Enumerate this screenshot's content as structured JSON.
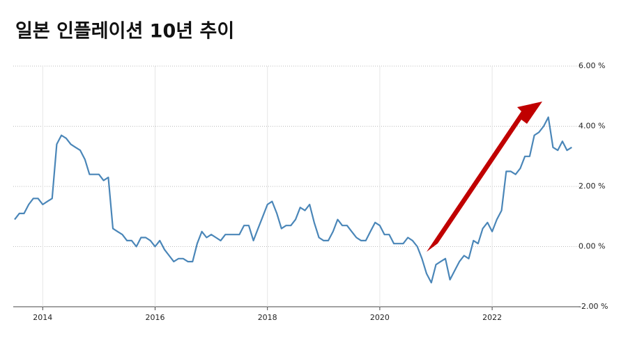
{
  "chart_data": {
    "type": "line",
    "title": "일본 인플레이션 10년 추이",
    "x": [
      2013.5,
      2013.583,
      2013.667,
      2013.75,
      2013.833,
      2013.917,
      2014,
      2014.083,
      2014.167,
      2014.25,
      2014.333,
      2014.417,
      2014.5,
      2014.583,
      2014.667,
      2014.75,
      2014.833,
      2014.917,
      2015,
      2015.083,
      2015.167,
      2015.25,
      2015.333,
      2015.417,
      2015.5,
      2015.583,
      2015.667,
      2015.75,
      2015.833,
      2015.917,
      2016,
      2016.083,
      2016.167,
      2016.25,
      2016.333,
      2016.417,
      2016.5,
      2016.583,
      2016.667,
      2016.75,
      2016.833,
      2016.917,
      2017,
      2017.083,
      2017.167,
      2017.25,
      2017.333,
      2017.417,
      2017.5,
      2017.583,
      2017.667,
      2017.75,
      2017.833,
      2017.917,
      2018,
      2018.083,
      2018.167,
      2018.25,
      2018.333,
      2018.417,
      2018.5,
      2018.583,
      2018.667,
      2018.75,
      2018.833,
      2018.917,
      2019,
      2019.083,
      2019.167,
      2019.25,
      2019.333,
      2019.417,
      2019.5,
      2019.583,
      2019.667,
      2019.75,
      2019.833,
      2019.917,
      2020,
      2020.083,
      2020.167,
      2020.25,
      2020.333,
      2020.417,
      2020.5,
      2020.583,
      2020.667,
      2020.75,
      2020.833,
      2020.917,
      2021,
      2021.083,
      2021.167,
      2021.25,
      2021.333,
      2021.417,
      2021.5,
      2021.583,
      2021.667,
      2021.75,
      2021.833,
      2021.917,
      2022,
      2022.083,
      2022.167,
      2022.25,
      2022.333,
      2022.417,
      2022.5,
      2022.583,
      2022.667,
      2022.75,
      2022.833,
      2022.917,
      2023,
      2023.083,
      2023.167,
      2023.25,
      2023.333,
      2023.417
    ],
    "series": [
      {
        "color": "#4a86b8",
        "values": [
          0.9,
          1.1,
          1.1,
          1.4,
          1.6,
          1.6,
          1.4,
          1.5,
          1.6,
          3.4,
          3.7,
          3.6,
          3.4,
          3.3,
          3.2,
          2.9,
          2.4,
          2.4,
          2.4,
          2.2,
          2.3,
          0.6,
          0.5,
          0.4,
          0.2,
          0.2,
          0.0,
          0.3,
          0.3,
          0.2,
          0.0,
          0.2,
          -0.1,
          -0.3,
          -0.5,
          -0.4,
          -0.4,
          -0.5,
          -0.5,
          0.1,
          0.5,
          0.3,
          0.4,
          0.3,
          0.2,
          0.4,
          0.4,
          0.4,
          0.4,
          0.7,
          0.7,
          0.2,
          0.6,
          1.0,
          1.4,
          1.5,
          1.1,
          0.6,
          0.7,
          0.7,
          0.9,
          1.3,
          1.2,
          1.4,
          0.8,
          0.3,
          0.2,
          0.2,
          0.5,
          0.9,
          0.7,
          0.7,
          0.5,
          0.3,
          0.2,
          0.2,
          0.5,
          0.8,
          0.7,
          0.4,
          0.4,
          0.1,
          0.1,
          0.1,
          0.3,
          0.2,
          0.0,
          -0.4,
          -0.9,
          -1.2,
          -0.6,
          -0.5,
          -0.4,
          -1.1,
          -0.8,
          -0.5,
          -0.3,
          -0.4,
          0.2,
          0.1,
          0.6,
          0.8,
          0.5,
          0.9,
          1.2,
          2.5,
          2.5,
          2.4,
          2.6,
          3.0,
          3.0,
          3.7,
          3.8,
          4.0,
          4.3,
          3.3,
          3.2,
          3.5,
          3.2,
          3.3
        ]
      }
    ],
    "xlim": [
      2013.5,
      2023.5
    ],
    "xticks": [
      2014,
      2016,
      2018,
      2020,
      2022
    ],
    "ylim": [
      -2,
      6
    ],
    "yticks": [
      {
        "value": -2,
        "label": "-2.00 %"
      },
      {
        "value": 0,
        "label": "0.00 %"
      },
      {
        "value": 2,
        "label": "2.00 %"
      },
      {
        "value": 4,
        "label": "4.00 %"
      },
      {
        "value": 6,
        "label": "6.00 %"
      }
    ],
    "grid": true
  }
}
